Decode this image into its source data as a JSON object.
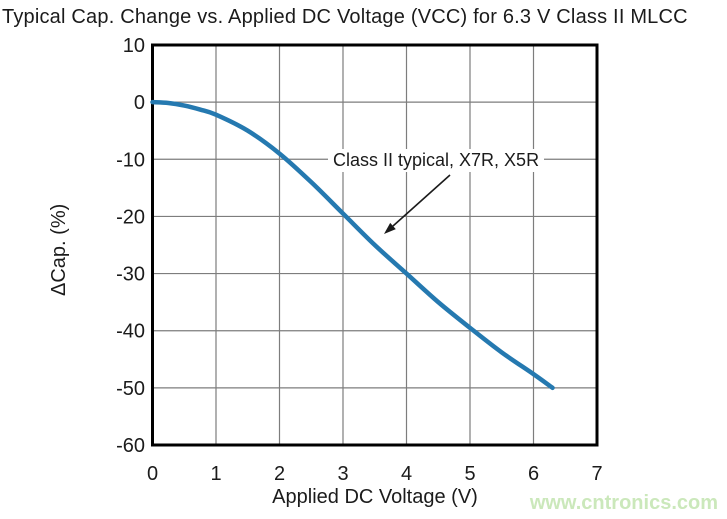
{
  "chart_data": {
    "type": "line",
    "title": "Typical Cap. Change vs. Applied DC Voltage (VCC) for 6.3 V Class II MLCC",
    "xlabel": "Applied DC Voltage (V)",
    "ylabel": "ΔCap. (%)",
    "xlim": [
      0,
      7
    ],
    "ylim": [
      -60,
      10
    ],
    "xticks": [
      0,
      1,
      2,
      3,
      4,
      5,
      6,
      7
    ],
    "yticks": [
      10,
      0,
      -10,
      -20,
      -30,
      -40,
      -50,
      -60
    ],
    "grid": true,
    "legend_position": "none",
    "series": [
      {
        "name": "Class II typical, X7R, X5R",
        "color": "#2579b0",
        "points": [
          [
            0,
            0
          ],
          [
            0.25,
            -0.15
          ],
          [
            0.5,
            -0.6
          ],
          [
            0.75,
            -1.3
          ],
          [
            1,
            -2.2
          ],
          [
            1.5,
            -5
          ],
          [
            2,
            -9
          ],
          [
            2.5,
            -14
          ],
          [
            3,
            -19.5
          ],
          [
            3.5,
            -25
          ],
          [
            4,
            -30
          ],
          [
            4.5,
            -35
          ],
          [
            5,
            -39.5
          ],
          [
            5.5,
            -43.8
          ],
          [
            6,
            -47.6
          ],
          [
            6.3,
            -50
          ]
        ]
      }
    ],
    "annotation": {
      "text": "Class II typical, X7R, X5R"
    }
  },
  "watermark": {
    "text": "www.cntronics.com",
    "color": "#cbe8bb"
  },
  "colors": {
    "curve": "#2579b0",
    "grid": "#7d7d7d",
    "frame": "#000000",
    "text": "#1b1b1b",
    "background": "#ffffff"
  }
}
